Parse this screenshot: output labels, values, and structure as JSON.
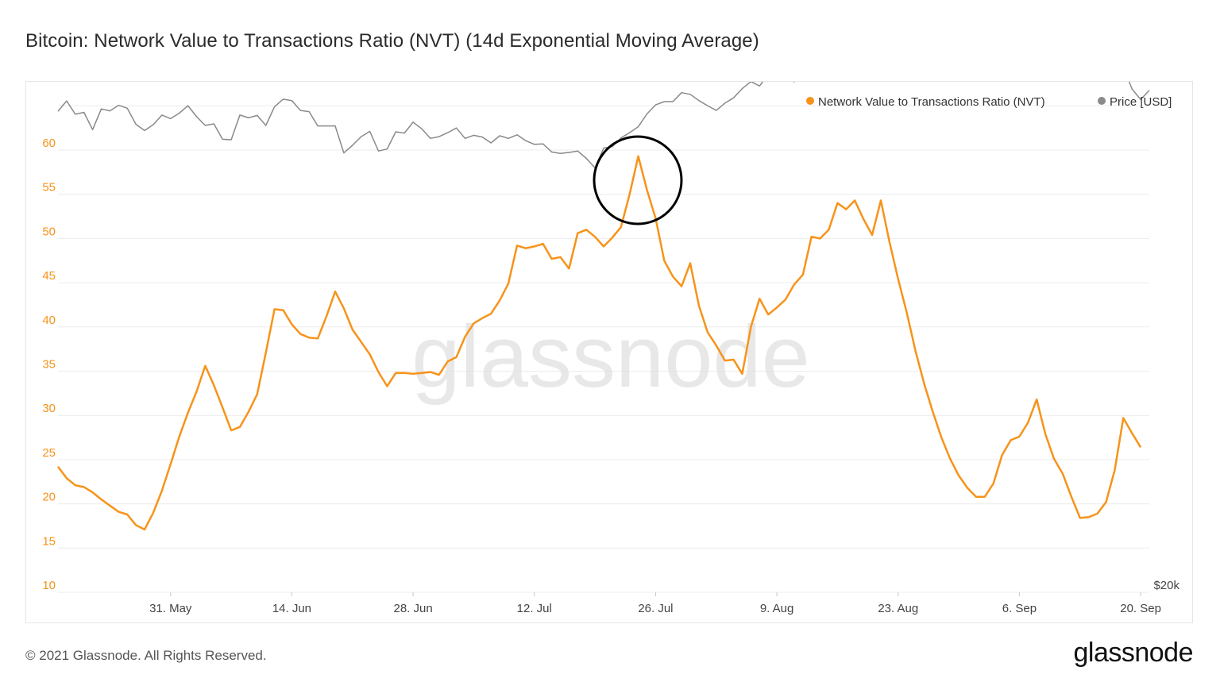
{
  "title": "Bitcoin: Network Value to Transactions Ratio (NVT) (14d Exponential Moving Average)",
  "footer": {
    "copyright": "© 2021 Glassnode. All Rights Reserved.",
    "logo": "glassnode"
  },
  "watermark": "glassnode",
  "colors": {
    "nvt": "#f7931a",
    "price": "#8a8a8a",
    "left_axis": "#f7931a",
    "grid": "#ececec",
    "annotation": "#000000"
  },
  "chart_data": {
    "type": "line",
    "title": "Bitcoin: Network Value to Transactions Ratio (NVT) (14d Exponential Moving Average)",
    "x_start": "2021-05-18",
    "x_end": "2021-09-21",
    "x_ticks": [
      "31. May",
      "14. Jun",
      "28. Jun",
      "12. Jul",
      "26. Jul",
      "9. Aug",
      "23. Aug",
      "6. Sep",
      "20. Sep"
    ],
    "y_left": {
      "ticks": [
        10,
        15,
        20,
        25,
        30,
        35,
        40,
        45,
        50,
        55,
        60
      ],
      "lim": [
        10,
        60
      ]
    },
    "y_right": {
      "tick_label": "$20k",
      "scale": "log"
    },
    "legend": {
      "placement": "top-right",
      "entries": [
        "Network Value to Transactions Ratio (NVT)",
        "Price [USD]"
      ]
    },
    "grid": true,
    "annotation": {
      "type": "circle",
      "around": "NVT peak 26. Jul"
    },
    "series": [
      {
        "name": "Network Value to Transactions Ratio (NVT)",
        "axis": "left",
        "values": [
          24.2,
          22.9,
          22.1,
          21.9,
          21.3,
          20.5,
          19.8,
          19.1,
          18.8,
          17.6,
          17.1,
          19.0,
          21.5,
          24.5,
          27.6,
          30.3,
          32.7,
          35.6,
          33.4,
          30.9,
          28.3,
          28.7,
          30.4,
          32.4,
          37.1,
          42.0,
          41.9,
          40.3,
          39.2,
          38.8,
          38.7,
          41.2,
          44.0,
          42.1,
          39.7,
          38.3,
          36.9,
          34.9,
          33.3,
          34.8,
          34.8,
          34.7,
          34.8,
          34.9,
          34.6,
          36.1,
          36.6,
          38.9,
          40.4,
          41.0,
          41.5,
          43.0,
          44.9,
          49.2,
          48.9,
          49.1,
          49.4,
          47.7,
          47.9,
          46.6,
          50.6,
          51.0,
          50.2,
          49.1,
          50.1,
          51.3,
          55.0,
          59.3,
          55.5,
          52.3,
          47.5,
          45.7,
          44.6,
          47.2,
          42.4,
          39.4,
          37.9,
          36.2,
          36.3,
          34.7,
          40.0,
          43.2,
          41.4,
          42.2,
          43.1,
          44.8,
          45.9,
          50.2,
          50.0,
          51.0,
          54.0,
          53.3,
          54.3,
          52.2,
          50.4,
          54.3,
          49.6,
          45.4,
          41.6,
          37.3,
          33.6,
          30.4,
          27.5,
          25.1,
          23.2,
          21.8,
          20.8,
          20.8,
          22.3,
          25.5,
          27.2,
          27.6,
          29.2,
          31.8,
          27.9,
          25.1,
          23.4,
          20.8,
          18.4,
          18.5,
          18.9,
          20.2,
          23.8,
          29.7,
          28.0,
          26.4
        ]
      },
      {
        "name": "Price [USD]",
        "axis": "right",
        "values": [
          42700,
          45500,
          41900,
          42400,
          38100,
          43300,
          42800,
          44300,
          43500,
          39400,
          37900,
          39300,
          41700,
          40800,
          42200,
          44200,
          41300,
          39100,
          39500,
          35900,
          35800,
          41700,
          41000,
          41600,
          39100,
          43900,
          46000,
          45600,
          42900,
          42600,
          39000,
          39000,
          39000,
          33000,
          34600,
          36500,
          37700,
          33400,
          33800,
          37600,
          37300,
          39900,
          38300,
          36100,
          36500,
          37400,
          38500,
          36100,
          36800,
          36400,
          35100,
          36700,
          36100,
          36900,
          35600,
          34800,
          34900,
          33200,
          32900,
          33100,
          33400,
          31900,
          30100,
          34000,
          34300,
          36200,
          37400,
          38800,
          42000,
          44400,
          45300,
          45300,
          47900,
          47400,
          45600,
          44200,
          42900,
          44900,
          46400,
          49100,
          51300,
          49900,
          53700,
          53000,
          52900,
          51200,
          55800,
          54700,
          54700,
          52900,
          51900,
          52000,
          53800,
          57600,
          57200,
          57600,
          57800,
          55700,
          56900,
          54800,
          57500,
          57300,
          57400,
          55200,
          55400,
          57400,
          58200,
          59100,
          59000,
          61700,
          63100,
          55600,
          54500,
          54900,
          52900,
          53200,
          54200,
          52500,
          56100,
          57700,
          57300,
          56400,
          57600,
          56200,
          49000,
          45900,
          48600
        ]
      }
    ]
  }
}
